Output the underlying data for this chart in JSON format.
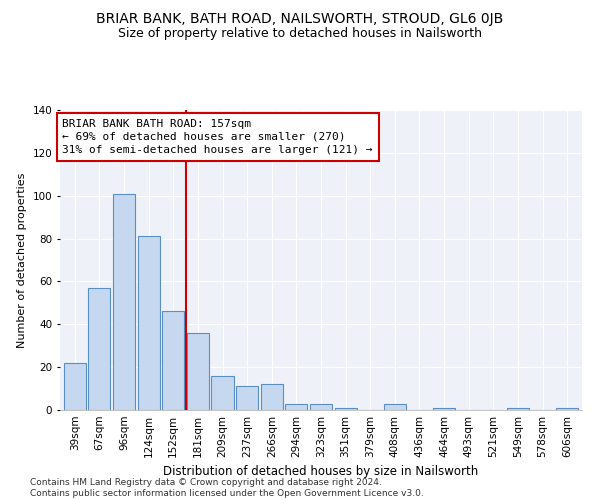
{
  "title": "BRIAR BANK, BATH ROAD, NAILSWORTH, STROUD, GL6 0JB",
  "subtitle": "Size of property relative to detached houses in Nailsworth",
  "xlabel": "Distribution of detached houses by size in Nailsworth",
  "ylabel": "Number of detached properties",
  "bar_color": "#c5d8f0",
  "bar_edge_color": "#5a8fc2",
  "background_color": "#eef2f8",
  "grid_color": "white",
  "categories": [
    "39sqm",
    "67sqm",
    "96sqm",
    "124sqm",
    "152sqm",
    "181sqm",
    "209sqm",
    "237sqm",
    "266sqm",
    "294sqm",
    "323sqm",
    "351sqm",
    "379sqm",
    "408sqm",
    "436sqm",
    "464sqm",
    "493sqm",
    "521sqm",
    "549sqm",
    "578sqm",
    "606sqm"
  ],
  "values": [
    22,
    57,
    101,
    81,
    46,
    36,
    16,
    11,
    12,
    3,
    3,
    1,
    0,
    3,
    0,
    1,
    0,
    0,
    1,
    0,
    1
  ],
  "vline_x": 4.5,
  "vline_color": "#cc0000",
  "annotation_text": "BRIAR BANK BATH ROAD: 157sqm\n← 69% of detached houses are smaller (270)\n31% of semi-detached houses are larger (121) →",
  "annotation_box_color": "white",
  "annotation_box_edge_color": "#cc0000",
  "ylim": [
    0,
    140
  ],
  "yticks": [
    0,
    20,
    40,
    60,
    80,
    100,
    120,
    140
  ],
  "footer": "Contains HM Land Registry data © Crown copyright and database right 2024.\nContains public sector information licensed under the Open Government Licence v3.0.",
  "title_fontsize": 10,
  "subtitle_fontsize": 9,
  "xlabel_fontsize": 8.5,
  "ylabel_fontsize": 8,
  "tick_fontsize": 7.5,
  "annotation_fontsize": 8,
  "footer_fontsize": 6.5
}
